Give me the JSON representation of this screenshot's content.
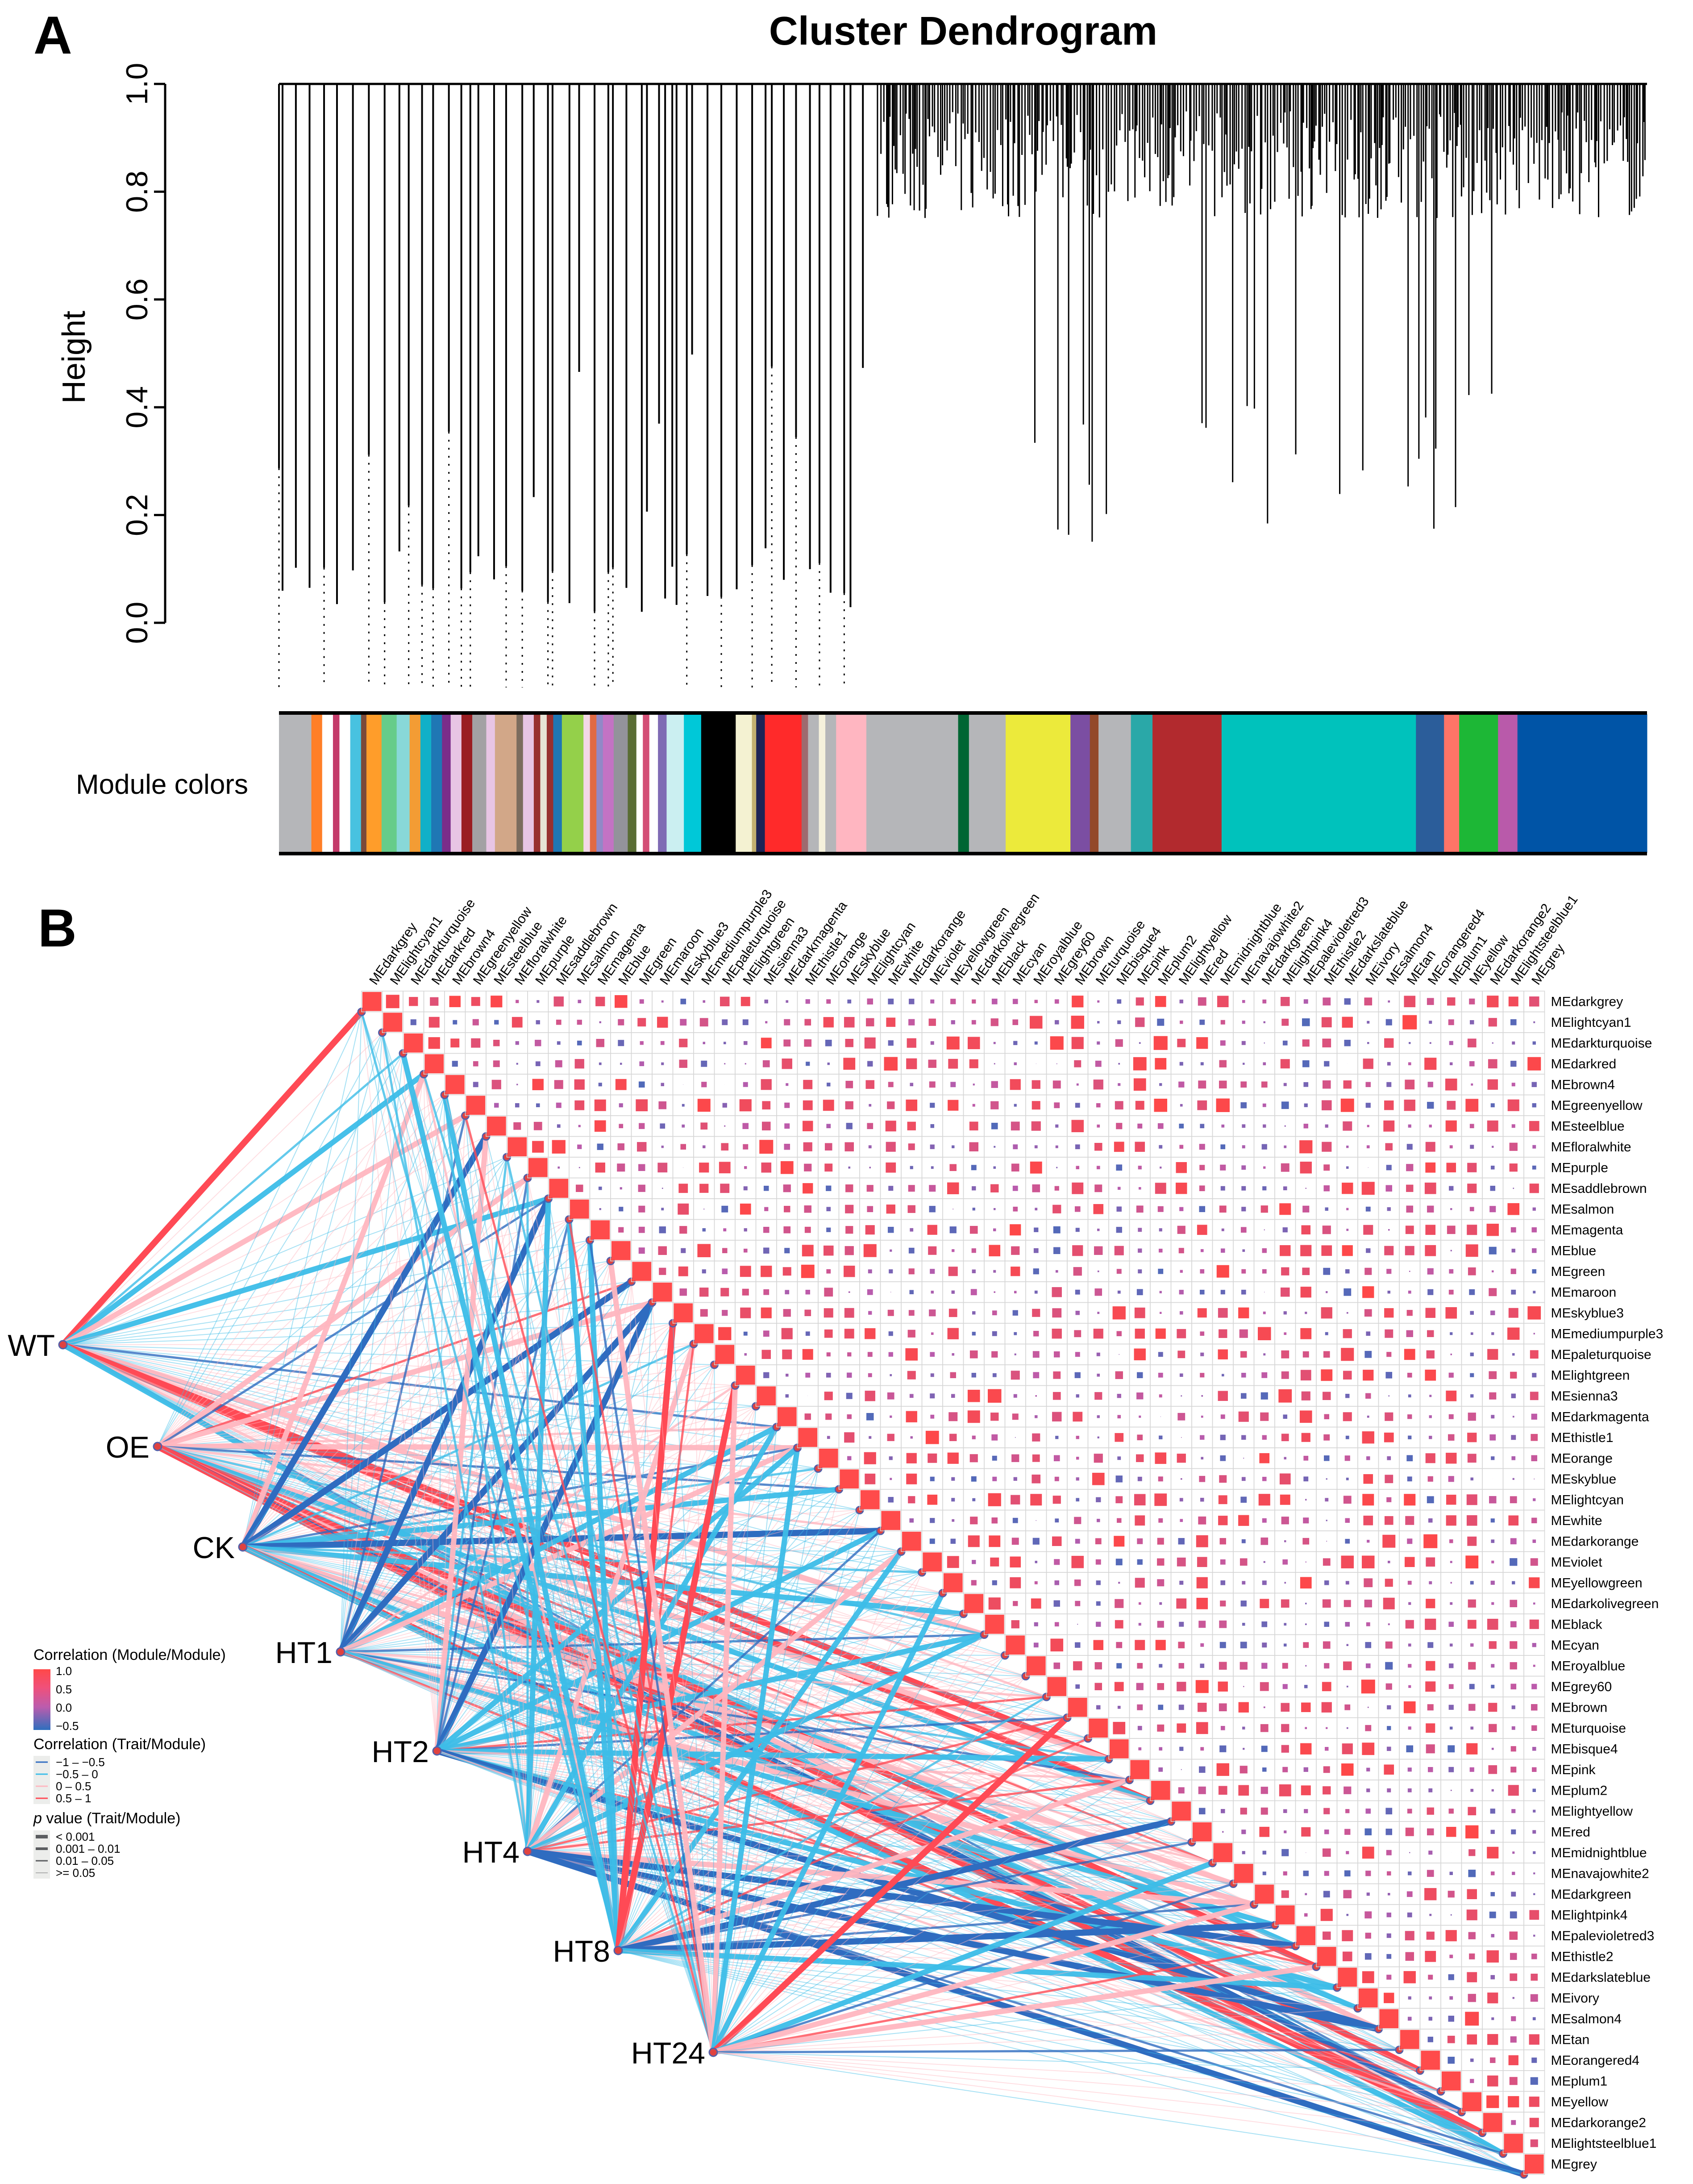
{
  "panels": {
    "a_label": "A",
    "b_label": "B"
  },
  "chart_data": [
    {
      "type": "dendrogram",
      "title": "Cluster Dendrogram",
      "ylabel": "Height",
      "ylim": [
        0,
        1
      ],
      "yticks": [
        "0.0",
        "0.2",
        "0.4",
        "0.6",
        "0.8",
        "1.0"
      ],
      "color_row_label": "Module colors",
      "module_color_strip": [
        [
          "#b5b6b9",
          3
        ],
        [
          "#ff7f27",
          1
        ],
        [
          "#ffffff",
          1
        ],
        [
          "#c43b6a",
          0.6
        ],
        [
          "#ffffff",
          1
        ],
        [
          "#48c2e0",
          1
        ],
        [
          "#7b4a3a",
          0.5
        ],
        [
          "#ff9d2a",
          1.4
        ],
        [
          "#66cc8a",
          1.4
        ],
        [
          "#88d8d8",
          1.2
        ],
        [
          "#f39c34",
          1
        ],
        [
          "#11b0c8",
          1
        ],
        [
          "#1f77b4",
          1
        ],
        [
          "#7b2d8a",
          0.8
        ],
        [
          "#e8c5e4",
          1
        ],
        [
          "#9a1d22",
          1
        ],
        [
          "#a3a1a4",
          1.3
        ],
        [
          "#e8c5e4",
          0.8
        ],
        [
          "#d2a788",
          2
        ],
        [
          "#7c6c5e",
          0.6
        ],
        [
          "#e8c5e4",
          1
        ],
        [
          "#98302f",
          0.6
        ],
        [
          "#e7e3d5",
          0.6
        ],
        [
          "#98302f",
          0.6
        ],
        [
          "#1f77b4",
          0.8
        ],
        [
          "#94d04a",
          2
        ],
        [
          "#f2d8e6",
          0.6
        ],
        [
          "#e06a44",
          0.6
        ],
        [
          "#9189c7",
          0.6
        ],
        [
          "#c373c4",
          1
        ],
        [
          "#93939b",
          1.3
        ],
        [
          "#596d34",
          0.8
        ],
        [
          "#ffffff",
          0.6
        ],
        [
          "#d34f76",
          0.6
        ],
        [
          "#ffffff",
          0.8
        ],
        [
          "#7f6bb4",
          0.8
        ],
        [
          "#cbeff1",
          1.6
        ],
        [
          "#00c8d8",
          1.6
        ],
        [
          "#000000",
          3.2
        ],
        [
          "#f4f2d2",
          1.5
        ],
        [
          "#c2b070",
          0.4
        ],
        [
          "#1d2456",
          0.8
        ],
        [
          "#ff2a2a",
          3.4
        ],
        [
          "#9e6a6e",
          0.6
        ],
        [
          "#b5b6b9",
          1
        ],
        [
          "#f5f1dc",
          0.6
        ],
        [
          "#b5b6b9",
          1
        ],
        [
          "#ffb6c1",
          2.8
        ],
        [
          "#b5b6b9",
          8.5
        ],
        [
          "#006633",
          1
        ],
        [
          "#b5b6b9",
          3.4
        ],
        [
          "#ecea3b",
          6
        ],
        [
          "#7b4ea2",
          1.8
        ],
        [
          "#93492a",
          0.8
        ],
        [
          "#b5b6b9",
          3
        ],
        [
          "#2aa8a8",
          2
        ],
        [
          "#b22a2e",
          6.4
        ],
        [
          "#00c2bc",
          18
        ],
        [
          "#2b5d9a",
          2.6
        ],
        [
          "#ff7467",
          1.4
        ],
        [
          "#1db736",
          3.6
        ],
        [
          "#b95aaa",
          1.8
        ],
        [
          "#0054a6",
          12
        ]
      ]
    },
    {
      "type": "heatmap",
      "modules": [
        "MEdarkgrey",
        "MElightcyan1",
        "MEdarkturquoise",
        "MEdarkred",
        "MEbrown4",
        "MEgreenyellow",
        "MEsteelblue",
        "MEfloralwhite",
        "MEpurple",
        "MEsaddlebrown",
        "MEsalmon",
        "MEmagenta",
        "MEblue",
        "MEgreen",
        "MEmaroon",
        "MEskyblue3",
        "MEmediumpurple3",
        "MEpaleturquoise",
        "MElightgreen",
        "MEsienna3",
        "MEdarkmagenta",
        "MEthistle1",
        "MEorange",
        "MEskyblue",
        "MElightcyan",
        "MEwhite",
        "MEdarkorange",
        "MEviolet",
        "MEyellowgreen",
        "MEdarkolivegreen",
        "MEblack",
        "MEcyan",
        "MEroyalblue",
        "MEgrey60",
        "MEbrown",
        "MEturquoise",
        "MEbisque4",
        "MEpink",
        "MEplum2",
        "MElightyellow",
        "MEred",
        "MEmidnightblue",
        "MEnavajowhite2",
        "MEdarkgreen",
        "MElightpink4",
        "MEpalevioletred3",
        "MEthistle2",
        "MEdarkslateblue",
        "MEivory",
        "MEsalmon4",
        "MEtan",
        "MEorangered4",
        "MEplum1",
        "MEyellow",
        "MEdarkorange2",
        "MElightsteelblue1",
        "MEgrey"
      ],
      "traits": [
        "WT",
        "OE",
        "CK",
        "HT1",
        "HT2",
        "HT4",
        "HT8",
        "HT24"
      ],
      "legend_module": {
        "title": "Correlation (Module/Module)",
        "ticks": [
          "1.0",
          "0.5",
          "0.0",
          "−0.5"
        ],
        "colors": [
          "#ff4b4b",
          "#c05aac",
          "#2f6fbd"
        ]
      },
      "legend_trait": {
        "title": "Correlation (Trait/Module)",
        "items": [
          {
            "label": "−1 – −0.5",
            "color": "#2f6cc0"
          },
          {
            "label": "−0.5 – 0",
            "color": "#3dbde8"
          },
          {
            "label": "0 – 0.5",
            "color": "#ffb7c0"
          },
          {
            "label": "0.5 – 1",
            "color": "#ff4a55"
          }
        ]
      },
      "legend_p": {
        "title_italic": "p",
        "title_rest": " value (Trait/Module)",
        "items": [
          "< 0.001",
          "0.001 – 0.01",
          "0.01 – 0.05",
          ">= 0.05"
        ]
      }
    }
  ]
}
